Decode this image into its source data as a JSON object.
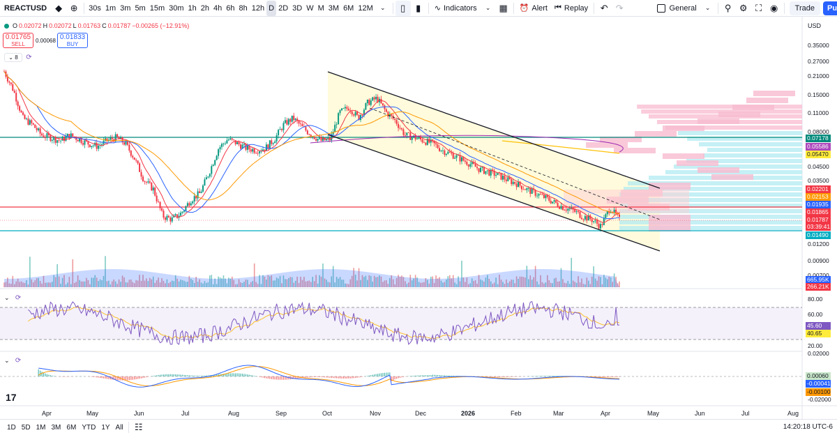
{
  "toolbar": {
    "symbol": "REACTUSD",
    "intervals": [
      "30s",
      "1m",
      "3m",
      "5m",
      "15m",
      "30m",
      "1h",
      "2h",
      "4h",
      "6h",
      "8h",
      "12h",
      "D",
      "2D",
      "3D",
      "W",
      "M",
      "3M",
      "6M",
      "12M"
    ],
    "active_interval": "D",
    "indicators_label": "Indicators",
    "alert_label": "Alert",
    "replay_label": "Replay",
    "layout_label": "General",
    "trade_label": "Trade",
    "publish_label": "Publish"
  },
  "legend": {
    "open_label": "O",
    "open": "0.02072",
    "high_label": "H",
    "high": "0.02072",
    "low_label": "L",
    "low": "0.01763",
    "close_label": "C",
    "close": "0.01787",
    "change": "−0.00265 (−12.91%)",
    "sell_price": "0.01765",
    "sell_label": "SELL",
    "spread": "0.00068",
    "buy_price": "0.01833",
    "buy_label": "BUY",
    "indicator_count": "8"
  },
  "price_scale": {
    "currency": "USD",
    "ticks": [
      "0.35000",
      "0.27000",
      "0.21000",
      "0.15000",
      "0.11000",
      "0.08000",
      "0.04500",
      "0.03500",
      "0.01200",
      "0.00900",
      "0.00700"
    ],
    "labels": [
      {
        "text": "0.07178",
        "color": "#00897b"
      },
      {
        "text": "0.05586",
        "color": "#ab47bc"
      },
      {
        "text": "0.05470",
        "color": "#ffeb3b",
        "dark": true
      },
      {
        "text": "0.02201",
        "color": "#f23645"
      },
      {
        "text": "0.02153",
        "color": "#ff9800"
      },
      {
        "text": "0.01935",
        "color": "#2962ff"
      },
      {
        "text": "0.01865",
        "color": "#f23645"
      },
      {
        "text": "0.01787",
        "color": "#f23645"
      },
      {
        "text": "03:39:41",
        "color": "#f23645"
      },
      {
        "text": "0.01490",
        "color": "#00acc1"
      },
      {
        "text": "665.95K",
        "color": "#2962ff"
      },
      {
        "text": "266.21K",
        "color": "#f23645"
      }
    ]
  },
  "rsi_scale": {
    "ticks": [
      "80.00",
      "60.00",
      "20.00"
    ],
    "labels": [
      {
        "text": "45.60",
        "color": "#7e57c2"
      },
      {
        "text": "40.65",
        "color": "#ffeb3b",
        "dark": true
      }
    ]
  },
  "macd_scale": {
    "ticks": [
      "0.02000",
      "-0.02000"
    ],
    "labels": [
      {
        "text": "0.00060",
        "color": "#c8e6c9",
        "dark": true
      },
      {
        "text": "-0.00041",
        "color": "#2962ff"
      },
      {
        "text": "-0.00100",
        "color": "#ff9800",
        "dark": true
      }
    ]
  },
  "time_axis": [
    "Apr",
    "May",
    "Jun",
    "Jul",
    "Aug",
    "Sep",
    "Oct",
    "Nov",
    "Dec",
    "2026",
    "Feb",
    "Mar",
    "Apr",
    "May",
    "Jun",
    "Jul",
    "Aug"
  ],
  "range_buttons": [
    "1D",
    "5D",
    "1M",
    "3M",
    "6M",
    "YTD",
    "1Y",
    "All"
  ],
  "clock": "14:20:18 UTC-6",
  "colors": {
    "up": "#089981",
    "down": "#f23645",
    "accent": "#2962ff"
  },
  "icons": [
    "favorite-icon",
    "add-symbol-icon",
    "chart-type-icon",
    "indicators-icon",
    "templates-icon",
    "alert-icon",
    "replay-icon",
    "undo-icon",
    "redo-icon",
    "search-icon",
    "settings-icon",
    "fullscreen-icon",
    "camera-icon",
    "calendar-icon"
  ],
  "chart_data": {
    "type": "candlestick",
    "symbol": "REACTUSD",
    "interval": "D",
    "last": {
      "open": 0.02072,
      "high": 0.02072,
      "low": 0.01763,
      "close": 0.01787
    },
    "close_series": [
      0.22,
      0.16,
      0.1,
      0.09,
      0.075,
      0.072,
      0.068,
      0.075,
      0.07,
      0.065,
      0.062,
      0.068,
      0.072,
      0.065,
      0.05,
      0.035,
      0.03,
      0.019,
      0.018,
      0.02,
      0.025,
      0.028,
      0.04,
      0.06,
      0.07,
      0.065,
      0.06,
      0.058,
      0.06,
      0.07,
      0.09,
      0.1,
      0.085,
      0.075,
      0.068,
      0.07,
      0.11,
      0.12,
      0.1,
      0.13,
      0.14,
      0.11,
      0.095,
      0.075,
      0.072,
      0.068,
      0.065,
      0.058,
      0.054,
      0.05,
      0.046,
      0.042,
      0.04,
      0.038,
      0.035,
      0.033,
      0.03,
      0.028,
      0.026,
      0.024,
      0.022,
      0.021,
      0.019,
      0.018,
      0.016,
      0.022,
      0.01787
    ],
    "horizontal_levels": [
      0.07178,
      0.01935,
      0.0149
    ],
    "indicators": [
      "RSI",
      "MACD",
      "Volume",
      "Volume Profile",
      "Moving Averages"
    ],
    "rsi": {
      "value": 45.6,
      "signal": 40.65,
      "upper": 70,
      "lower": 30
    },
    "macd": {
      "hist": 0.0006,
      "macd": -0.00041,
      "signal": -0.001
    },
    "volume": {
      "ma": "665.95K",
      "last": "266.21K"
    }
  }
}
